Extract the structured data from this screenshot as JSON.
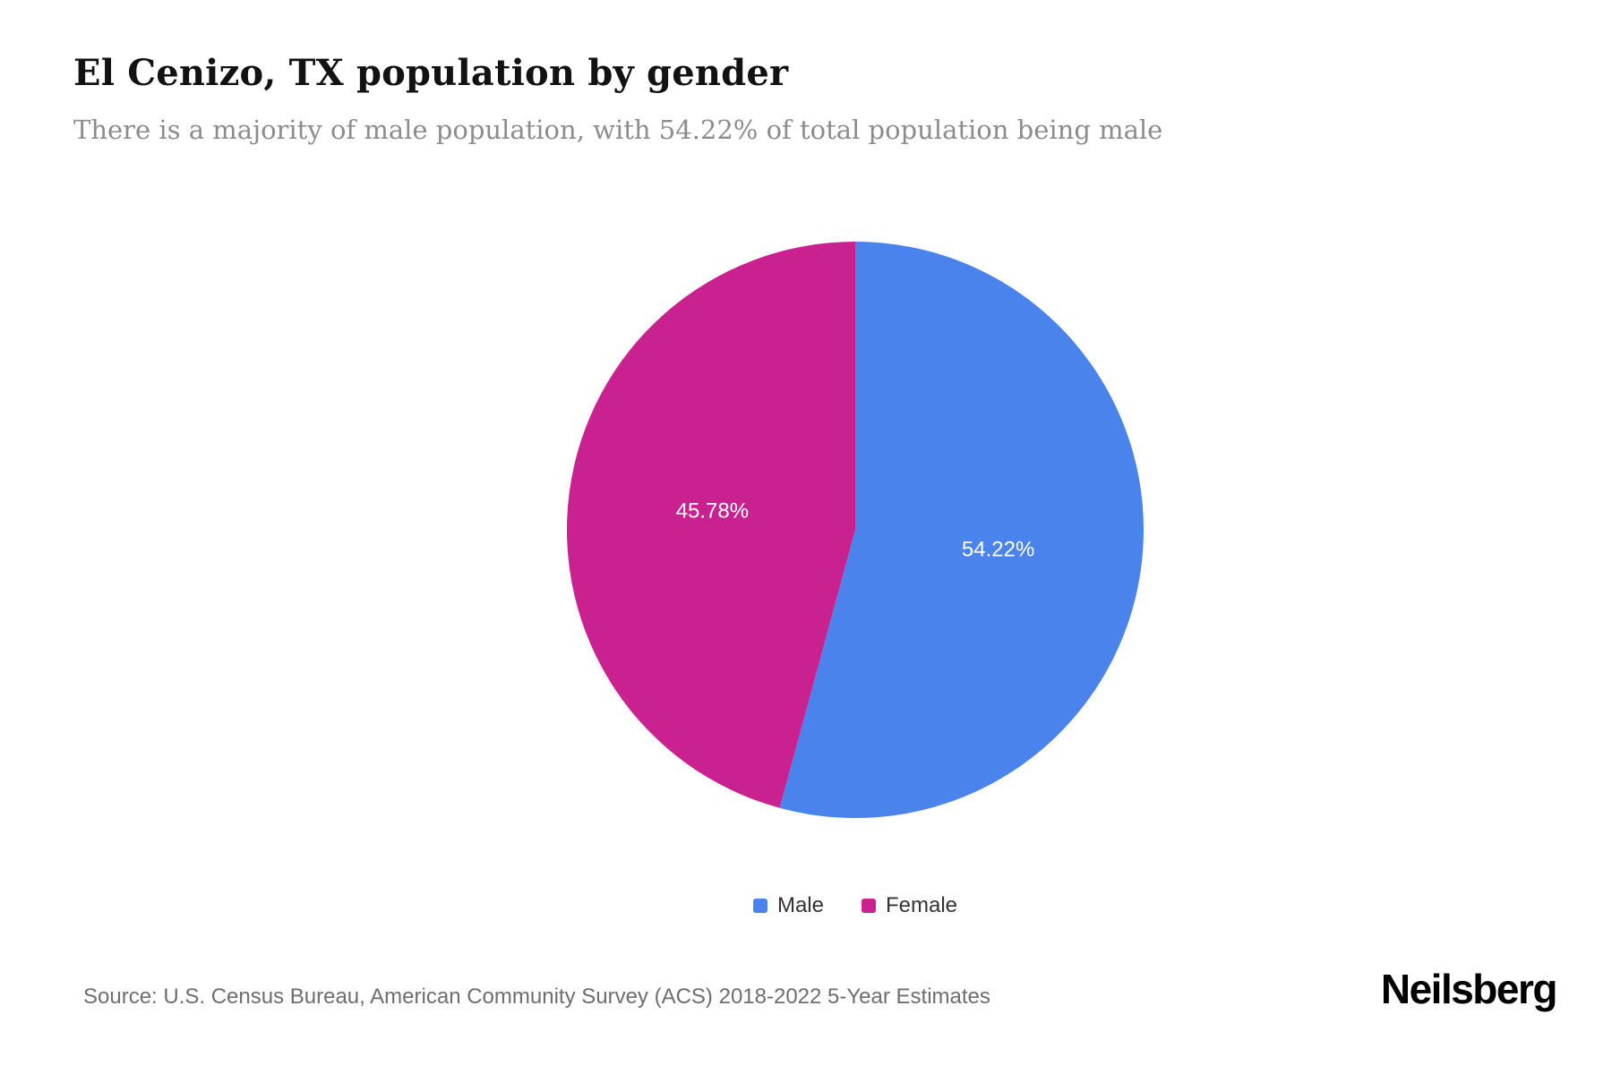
{
  "page": {
    "title": "El Cenizo, TX population by gender",
    "subtitle": "There is a majority of male population, with 54.22% of total population being male",
    "source": "Source: U.S. Census Bureau, American Community Survey (ACS) 2018-2022 5-Year Estimates",
    "brand": "Neilsberg"
  },
  "chart_data": {
    "type": "pie",
    "title": "El Cenizo, TX population by gender",
    "subtitle": "There is a majority of male population, with 54.22% of total population being male",
    "slices": [
      {
        "label": "Male",
        "value": 54.22,
        "display": "54.22%",
        "color": "#4b83ec"
      },
      {
        "label": "Female",
        "value": 45.78,
        "display": "45.78%",
        "color": "#c92190"
      }
    ],
    "start_angle_deg": -90,
    "direction": "clockwise",
    "legend_position": "bottom",
    "slice_label_color": "#ffffff",
    "source": "Source: U.S. Census Bureau, American Community Survey (ACS) 2018-2022 5-Year Estimates"
  }
}
